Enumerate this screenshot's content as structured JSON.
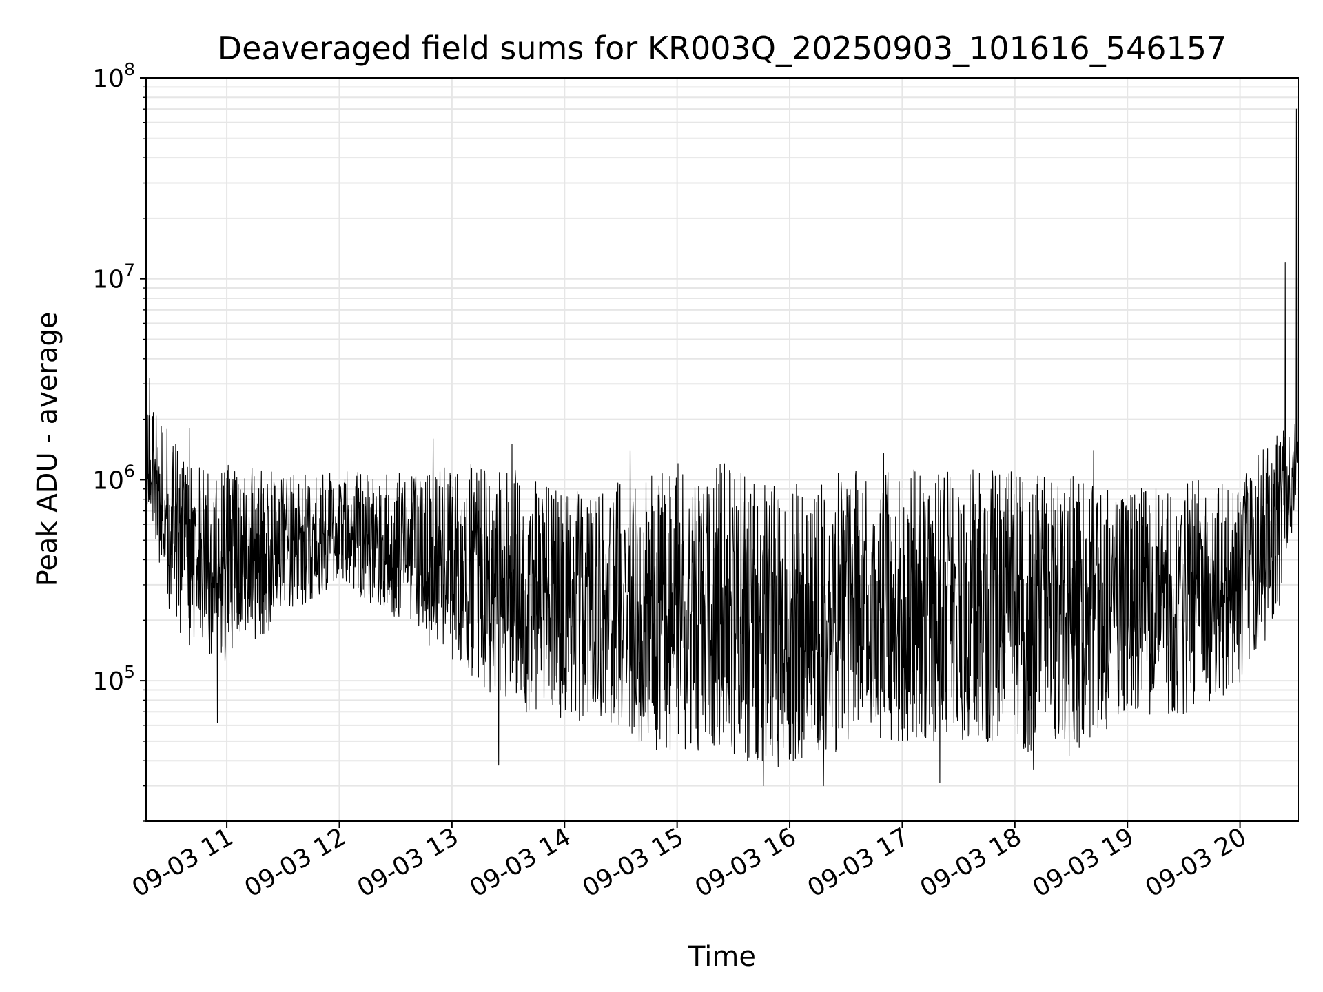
{
  "chart_data": {
    "type": "line",
    "title": "Deaveraged field sums for KR003Q_20250903_101616_546157",
    "xlabel": "Time",
    "ylabel": "Peak ADU - average",
    "yscale": "log",
    "grid": true,
    "line_color": "#000000",
    "grid_color": "#e6e6e6",
    "xlim": [
      "2025-09-03T10:17",
      "2025-09-03T20:31"
    ],
    "ylim": [
      20000,
      100000000
    ],
    "x_ticks": [
      {
        "value": "2025-09-03T11:00",
        "label": "09-03 11"
      },
      {
        "value": "2025-09-03T12:00",
        "label": "09-03 12"
      },
      {
        "value": "2025-09-03T13:00",
        "label": "09-03 13"
      },
      {
        "value": "2025-09-03T14:00",
        "label": "09-03 14"
      },
      {
        "value": "2025-09-03T15:00",
        "label": "09-03 15"
      },
      {
        "value": "2025-09-03T16:00",
        "label": "09-03 16"
      },
      {
        "value": "2025-09-03T17:00",
        "label": "09-03 17"
      },
      {
        "value": "2025-09-03T18:00",
        "label": "09-03 18"
      },
      {
        "value": "2025-09-03T19:00",
        "label": "09-03 19"
      },
      {
        "value": "2025-09-03T20:00",
        "label": "09-03 20"
      }
    ],
    "y_ticks": [
      {
        "value": 100000,
        "base": "10",
        "exp": "5"
      },
      {
        "value": 1000000,
        "base": "10",
        "exp": "6"
      },
      {
        "value": 10000000,
        "base": "10",
        "exp": "7"
      },
      {
        "value": 100000000,
        "base": "10",
        "exp": "8"
      }
    ],
    "envelope": {
      "x": [
        "2025-09-03T10:17",
        "2025-09-03T10:30",
        "2025-09-03T10:40",
        "2025-09-03T11:00",
        "2025-09-03T11:30",
        "2025-09-03T12:00",
        "2025-09-03T12:30",
        "2025-09-03T13:00",
        "2025-09-03T13:30",
        "2025-09-03T14:00",
        "2025-09-03T14:30",
        "2025-09-03T14:45",
        "2025-09-03T15:00",
        "2025-09-03T15:30",
        "2025-09-03T16:00",
        "2025-09-03T16:20",
        "2025-09-03T16:30",
        "2025-09-03T17:00",
        "2025-09-03T17:30",
        "2025-09-03T18:00",
        "2025-09-03T18:30",
        "2025-09-03T19:00",
        "2025-09-03T19:30",
        "2025-09-03T20:00",
        "2025-09-03T20:20",
        "2025-09-03T20:31"
      ],
      "low": [
        800000,
        200000,
        150000,
        120000,
        200000,
        300000,
        200000,
        120000,
        70000,
        60000,
        60000,
        45000,
        45000,
        40000,
        35000,
        38000,
        50000,
        50000,
        50000,
        45000,
        40000,
        70000,
        65000,
        90000,
        200000,
        800000
      ],
      "high": [
        3000000,
        1800000,
        1200000,
        1200000,
        1100000,
        1100000,
        1100000,
        1200000,
        1200000,
        900000,
        1000000,
        1300000,
        1300000,
        1200000,
        1000000,
        1000000,
        1150000,
        1150000,
        1200000,
        1100000,
        1100000,
        900000,
        1000000,
        1000000,
        1800000,
        2000000
      ]
    },
    "spikes": [
      {
        "x": "2025-09-03T10:19",
        "y": 3200000
      },
      {
        "x": "2025-09-03T10:40",
        "y": 1800000
      },
      {
        "x": "2025-09-03T10:55",
        "y": 1800000
      },
      {
        "x": "2025-09-03T12:50",
        "y": 1600000
      },
      {
        "x": "2025-09-03T13:32",
        "y": 1500000
      },
      {
        "x": "2025-09-03T14:35",
        "y": 1400000
      },
      {
        "x": "2025-09-03T16:50",
        "y": 1350000
      },
      {
        "x": "2025-09-03T17:20",
        "y": 1300000
      },
      {
        "x": "2025-09-03T18:42",
        "y": 1400000
      },
      {
        "x": "2025-09-03T20:24",
        "y": 12000000
      },
      {
        "x": "2025-09-03T20:30",
        "y": 70000000
      },
      {
        "x": "2025-09-03T10:55",
        "y": 62000
      },
      {
        "x": "2025-09-03T13:25",
        "y": 38000
      },
      {
        "x": "2025-09-03T15:46",
        "y": 30000
      },
      {
        "x": "2025-09-03T16:18",
        "y": 30000
      },
      {
        "x": "2025-09-03T17:20",
        "y": 31000
      },
      {
        "x": "2025-09-03T18:10",
        "y": 36000
      }
    ]
  }
}
